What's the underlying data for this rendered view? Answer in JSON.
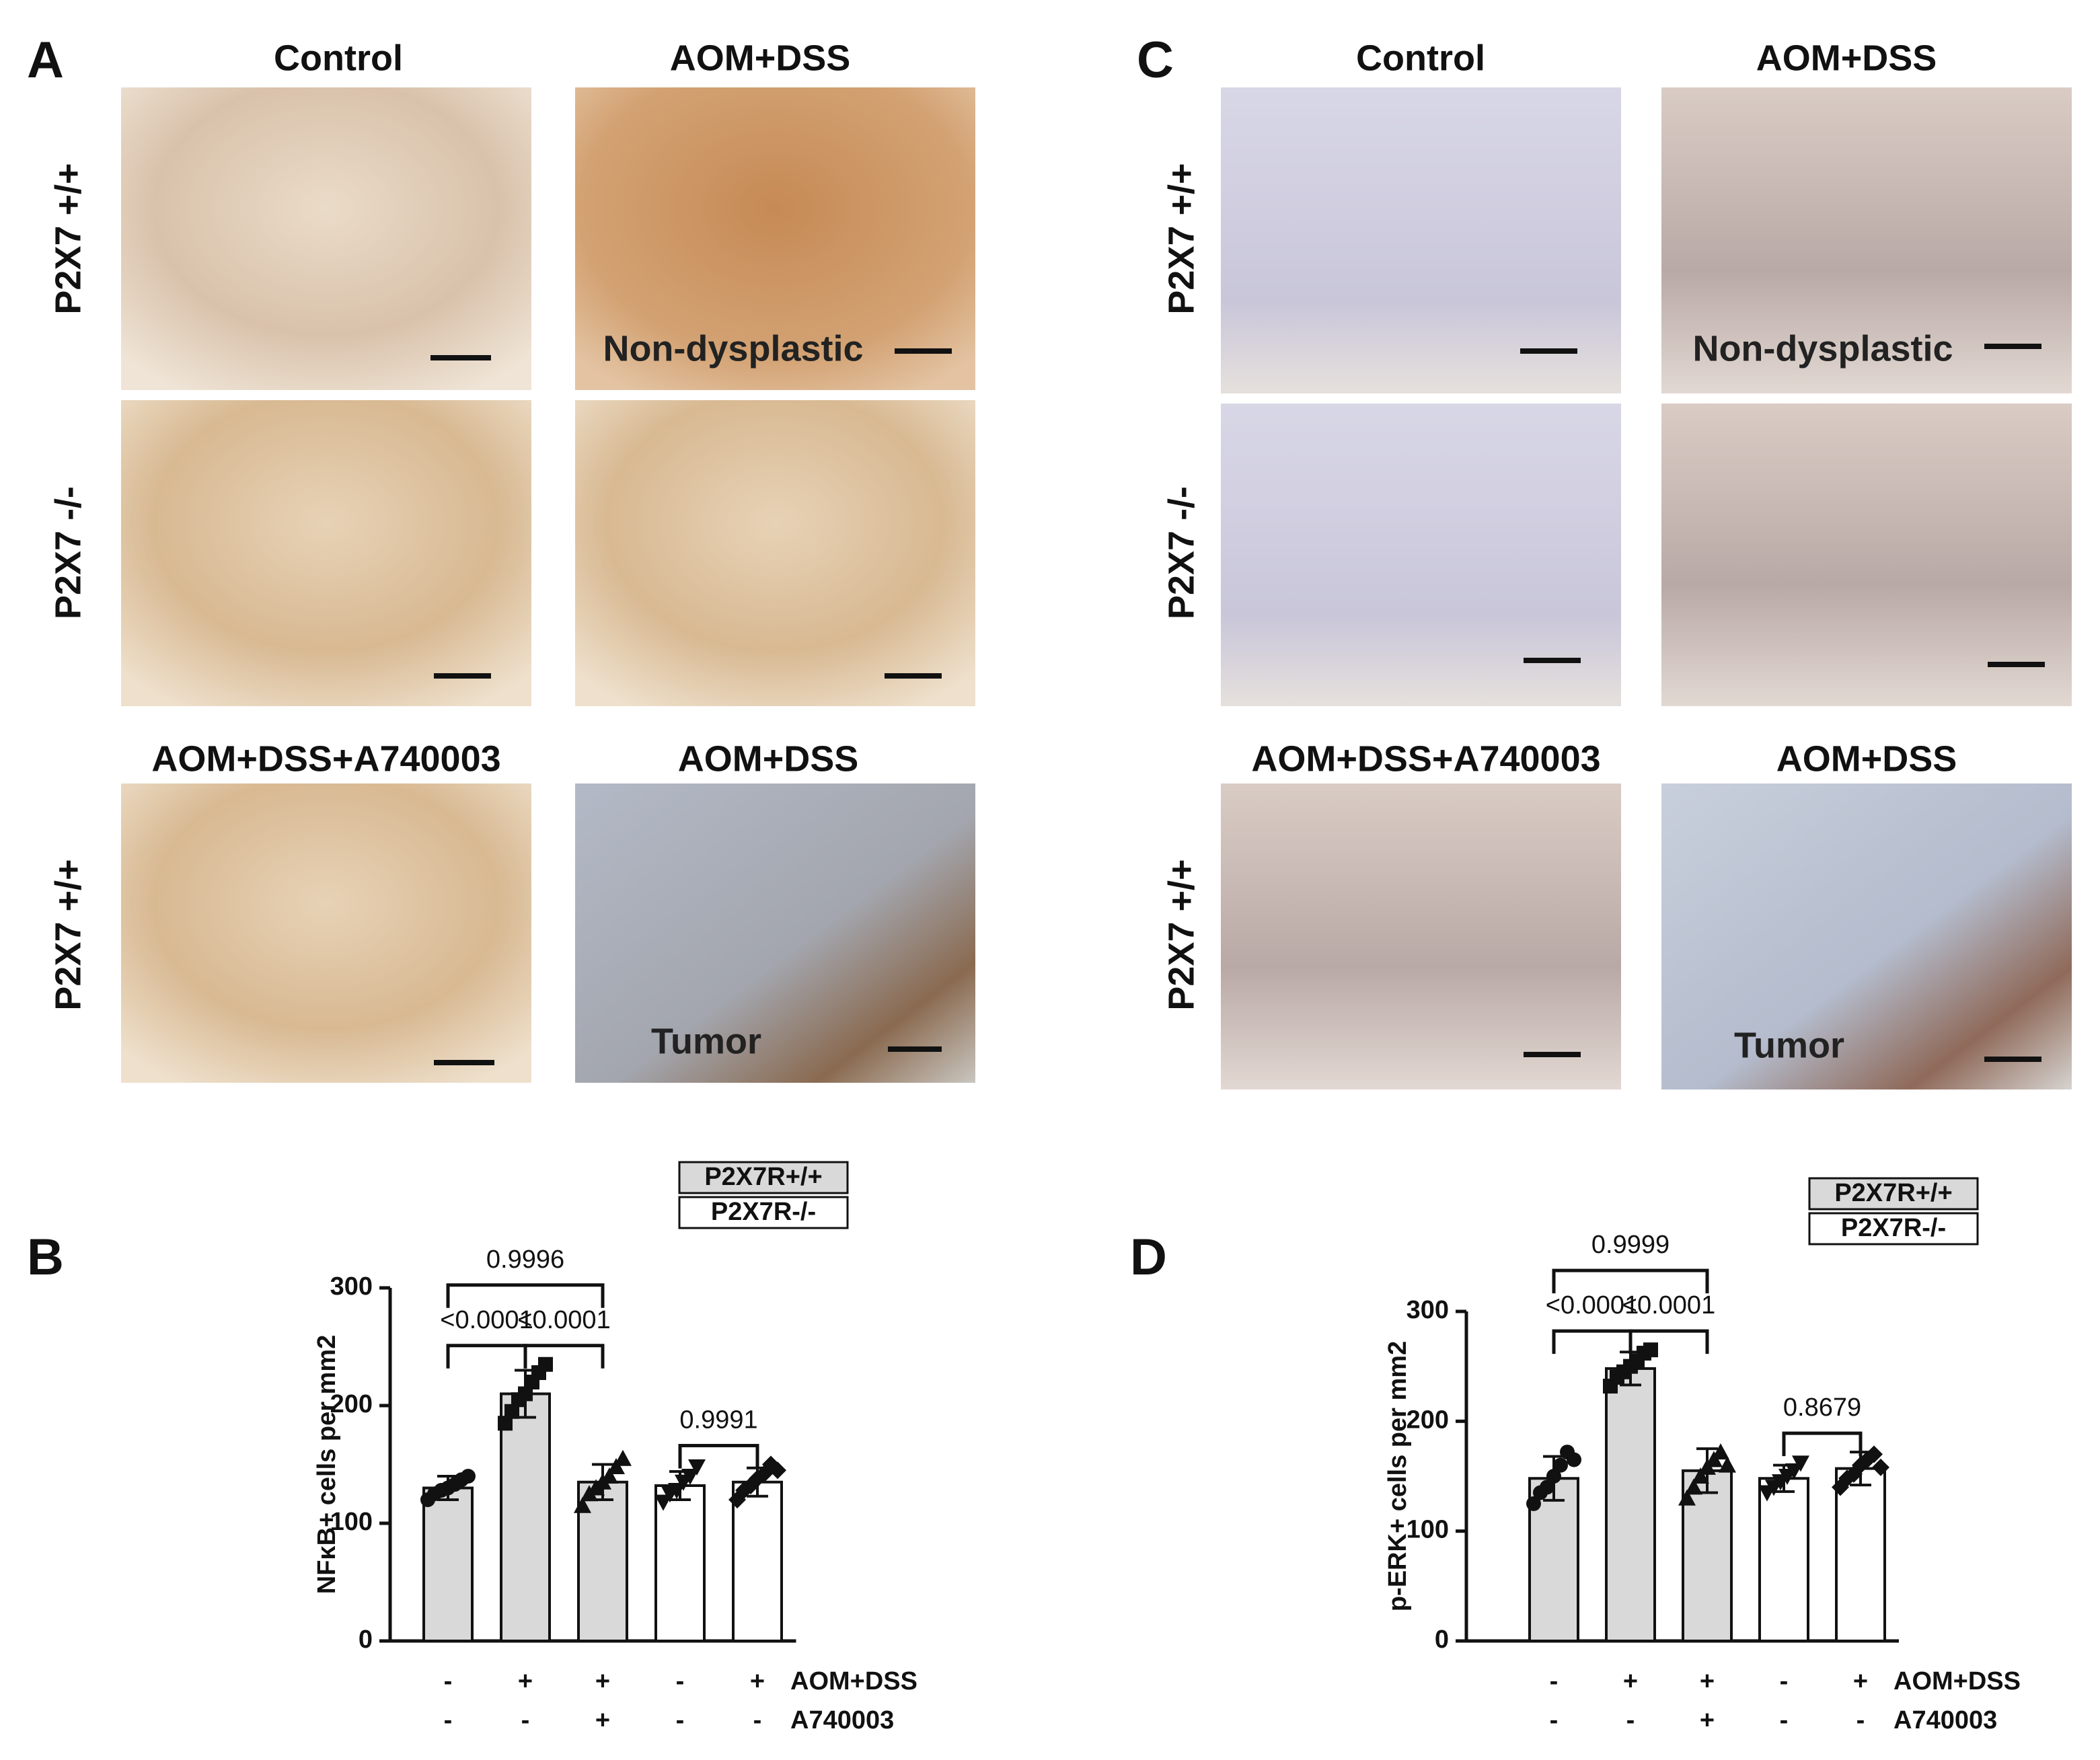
{
  "panel_a": {
    "label": "A",
    "columns": [
      "Control",
      "AOM+DSS"
    ],
    "rows": [
      "P2X7 +/+",
      "P2X7 -/-"
    ],
    "treatment_headers": [
      "AOM+DSS+A740003",
      "AOM+DSS"
    ],
    "treatment_row": "P2X7 +/+",
    "image_notes": [
      "Non-dysplastic",
      "Tumor"
    ]
  },
  "panel_c": {
    "label": "C",
    "columns": [
      "Control",
      "AOM+DSS"
    ],
    "rows": [
      "P2X7 +/+",
      "P2X7 -/-"
    ],
    "treatment_headers": [
      "AOM+DSS+A740003",
      "AOM+DSS"
    ],
    "treatment_row": "P2X7 +/+",
    "image_notes": [
      "Non-dysplastic",
      "Tumor"
    ]
  },
  "chart_data": [
    {
      "type": "bar",
      "panel": "B",
      "ylabel": "NFκB+ cells per mm2",
      "ylim": [
        0,
        300
      ],
      "yticks": [
        0,
        100,
        200,
        300
      ],
      "series": [
        {
          "name": "P2X7R+/+",
          "color": "#d9d9d9",
          "values": [
            130,
            210,
            135,
            null,
            null
          ],
          "errors": [
            10,
            20,
            15,
            null,
            null
          ],
          "points": [
            [
              120,
              125,
              128,
              130,
              133,
              137,
              140
            ],
            [
              185,
              195,
              205,
              210,
              220,
              228,
              235
            ],
            [
              115,
              125,
              130,
              135,
              140,
              148,
              155
            ],
            null,
            null
          ]
        },
        {
          "name": "P2X7R-/-",
          "color": "#ffffff",
          "values": [
            null,
            null,
            null,
            132,
            135
          ],
          "errors": [
            null,
            null,
            null,
            12,
            12
          ],
          "points": [
            null,
            null,
            null,
            [
              118,
              125,
              128,
              135,
              140,
              148
            ],
            [
              120,
              128,
              132,
              138,
              142,
              150,
              145
            ]
          ]
        }
      ],
      "comparisons": [
        {
          "from": 0,
          "to": 1,
          "label": "<0.0001"
        },
        {
          "from": 1,
          "to": 2,
          "label": "<0.0001"
        },
        {
          "from": 0,
          "to": 2,
          "label": "0.9996"
        },
        {
          "from": 3,
          "to": 4,
          "label": "0.9991"
        }
      ],
      "conditions": [
        {
          "label": "AOM+DSS",
          "signs": [
            "-",
            "+",
            "+",
            "-",
            "+"
          ]
        },
        {
          "label": "A740003",
          "signs": [
            "-",
            "-",
            "+",
            "-",
            "-"
          ]
        }
      ]
    },
    {
      "type": "bar",
      "panel": "D",
      "ylabel": "p-ERK+ cells per mm2",
      "ylim": [
        0,
        300
      ],
      "yticks": [
        0,
        100,
        200,
        300
      ],
      "series": [
        {
          "name": "P2X7R+/+",
          "color": "#d9d9d9",
          "values": [
            148,
            248,
            155,
            null,
            null
          ],
          "errors": [
            20,
            15,
            20,
            null,
            null
          ],
          "points": [
            [
              125,
              135,
              140,
              150,
              160,
              172,
              165
            ],
            [
              232,
              240,
              245,
              250,
              255,
              262,
              265
            ],
            [
              130,
              140,
              150,
              158,
              165,
              172,
              160
            ],
            null,
            null
          ]
        },
        {
          "name": "P2X7R-/-",
          "color": "#ffffff",
          "values": [
            null,
            null,
            null,
            148,
            157
          ],
          "errors": [
            null,
            null,
            null,
            12,
            15
          ],
          "points": [
            null,
            null,
            null,
            [
              135,
              140,
              145,
              150,
              155,
              162
            ],
            [
              140,
              148,
              152,
              160,
              165,
              170,
              158
            ]
          ]
        }
      ],
      "comparisons": [
        {
          "from": 0,
          "to": 1,
          "label": "<0.0001"
        },
        {
          "from": 1,
          "to": 2,
          "label": "<0.0001"
        },
        {
          "from": 0,
          "to": 2,
          "label": "0.9999"
        },
        {
          "from": 3,
          "to": 4,
          "label": "0.8679"
        }
      ],
      "conditions": [
        {
          "label": "AOM+DSS",
          "signs": [
            "-",
            "+",
            "+",
            "-",
            "+"
          ]
        },
        {
          "label": "A740003",
          "signs": [
            "-",
            "-",
            "+",
            "-",
            "-"
          ]
        }
      ]
    }
  ]
}
